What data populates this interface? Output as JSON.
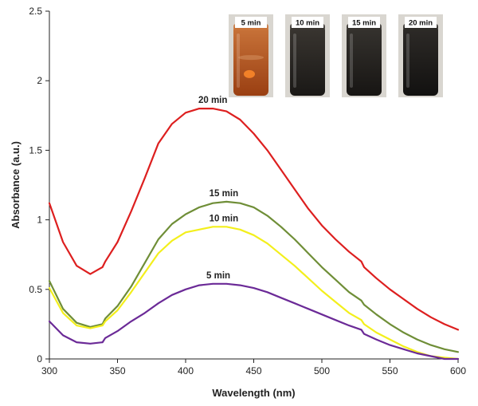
{
  "chart_data": {
    "type": "line",
    "xlabel": "Wavelength (nm)",
    "ylabel": "Absorbance (a.u.)",
    "xlim": [
      300,
      600
    ],
    "ylim": [
      0,
      2.5
    ],
    "x_ticks": [
      "300",
      "350",
      "400",
      "450",
      "500",
      "550",
      "600"
    ],
    "y_ticks": [
      "0",
      "0.5",
      "1",
      "1.5",
      "2",
      "2.5"
    ],
    "grid": false,
    "legend": "none",
    "x": [
      300,
      310,
      320,
      330,
      339,
      341,
      350,
      360,
      370,
      380,
      390,
      400,
      410,
      420,
      430,
      440,
      450,
      460,
      470,
      480,
      490,
      500,
      510,
      520,
      529,
      531,
      540,
      550,
      560,
      570,
      580,
      590,
      600
    ],
    "series": [
      {
        "name": "20 min",
        "color": "#dd1f1f",
        "values": [
          1.12,
          0.84,
          0.67,
          0.61,
          0.66,
          0.7,
          0.84,
          1.06,
          1.3,
          1.55,
          1.69,
          1.77,
          1.8,
          1.8,
          1.78,
          1.72,
          1.62,
          1.5,
          1.36,
          1.22,
          1.08,
          0.96,
          0.86,
          0.77,
          0.7,
          0.66,
          0.58,
          0.5,
          0.43,
          0.36,
          0.3,
          0.25,
          0.21
        ]
      },
      {
        "name": "15 min",
        "color": "#6f8e37",
        "values": [
          0.56,
          0.36,
          0.26,
          0.23,
          0.25,
          0.29,
          0.38,
          0.52,
          0.69,
          0.86,
          0.97,
          1.04,
          1.09,
          1.12,
          1.13,
          1.12,
          1.09,
          1.03,
          0.95,
          0.86,
          0.76,
          0.66,
          0.57,
          0.48,
          0.42,
          0.39,
          0.32,
          0.25,
          0.19,
          0.14,
          0.1,
          0.07,
          0.05
        ]
      },
      {
        "name": "10 min",
        "color": "#f3ef1c",
        "values": [
          0.51,
          0.33,
          0.24,
          0.22,
          0.24,
          0.27,
          0.35,
          0.48,
          0.62,
          0.76,
          0.85,
          0.91,
          0.93,
          0.95,
          0.95,
          0.93,
          0.89,
          0.83,
          0.75,
          0.67,
          0.58,
          0.49,
          0.41,
          0.33,
          0.28,
          0.25,
          0.19,
          0.14,
          0.09,
          0.05,
          0.02,
          0.01,
          0.0
        ]
      },
      {
        "name": "5 min",
        "color": "#6b2a97",
        "values": [
          0.27,
          0.17,
          0.12,
          0.11,
          0.12,
          0.15,
          0.2,
          0.27,
          0.33,
          0.4,
          0.46,
          0.5,
          0.53,
          0.54,
          0.54,
          0.53,
          0.51,
          0.48,
          0.44,
          0.4,
          0.36,
          0.32,
          0.28,
          0.24,
          0.21,
          0.18,
          0.14,
          0.1,
          0.07,
          0.04,
          0.02,
          0.0,
          0.0
        ]
      }
    ],
    "annotations": [
      {
        "series": "20 min",
        "text": "20 min",
        "x": 420,
        "y": 1.8
      },
      {
        "series": "15 min",
        "text": "15 min",
        "x": 428,
        "y": 1.13
      },
      {
        "series": "10 min",
        "text": "10 min",
        "x": 428,
        "y": 0.95
      },
      {
        "series": "5 min",
        "text": "5 min",
        "x": 424,
        "y": 0.54
      }
    ]
  },
  "inset_photos": [
    {
      "label": "5 min",
      "liquid_top": "#c9743a",
      "liquid_bottom": "#9a3f12",
      "glow": "#ff8a2a"
    },
    {
      "label": "10 min",
      "liquid_top": "#3a3631",
      "liquid_bottom": "#1a1816",
      "glow": null
    },
    {
      "label": "15 min",
      "liquid_top": "#36332f",
      "liquid_bottom": "#171513",
      "glow": null
    },
    {
      "label": "20 min",
      "liquid_top": "#2e2b28",
      "liquid_bottom": "#121110",
      "glow": null
    }
  ]
}
